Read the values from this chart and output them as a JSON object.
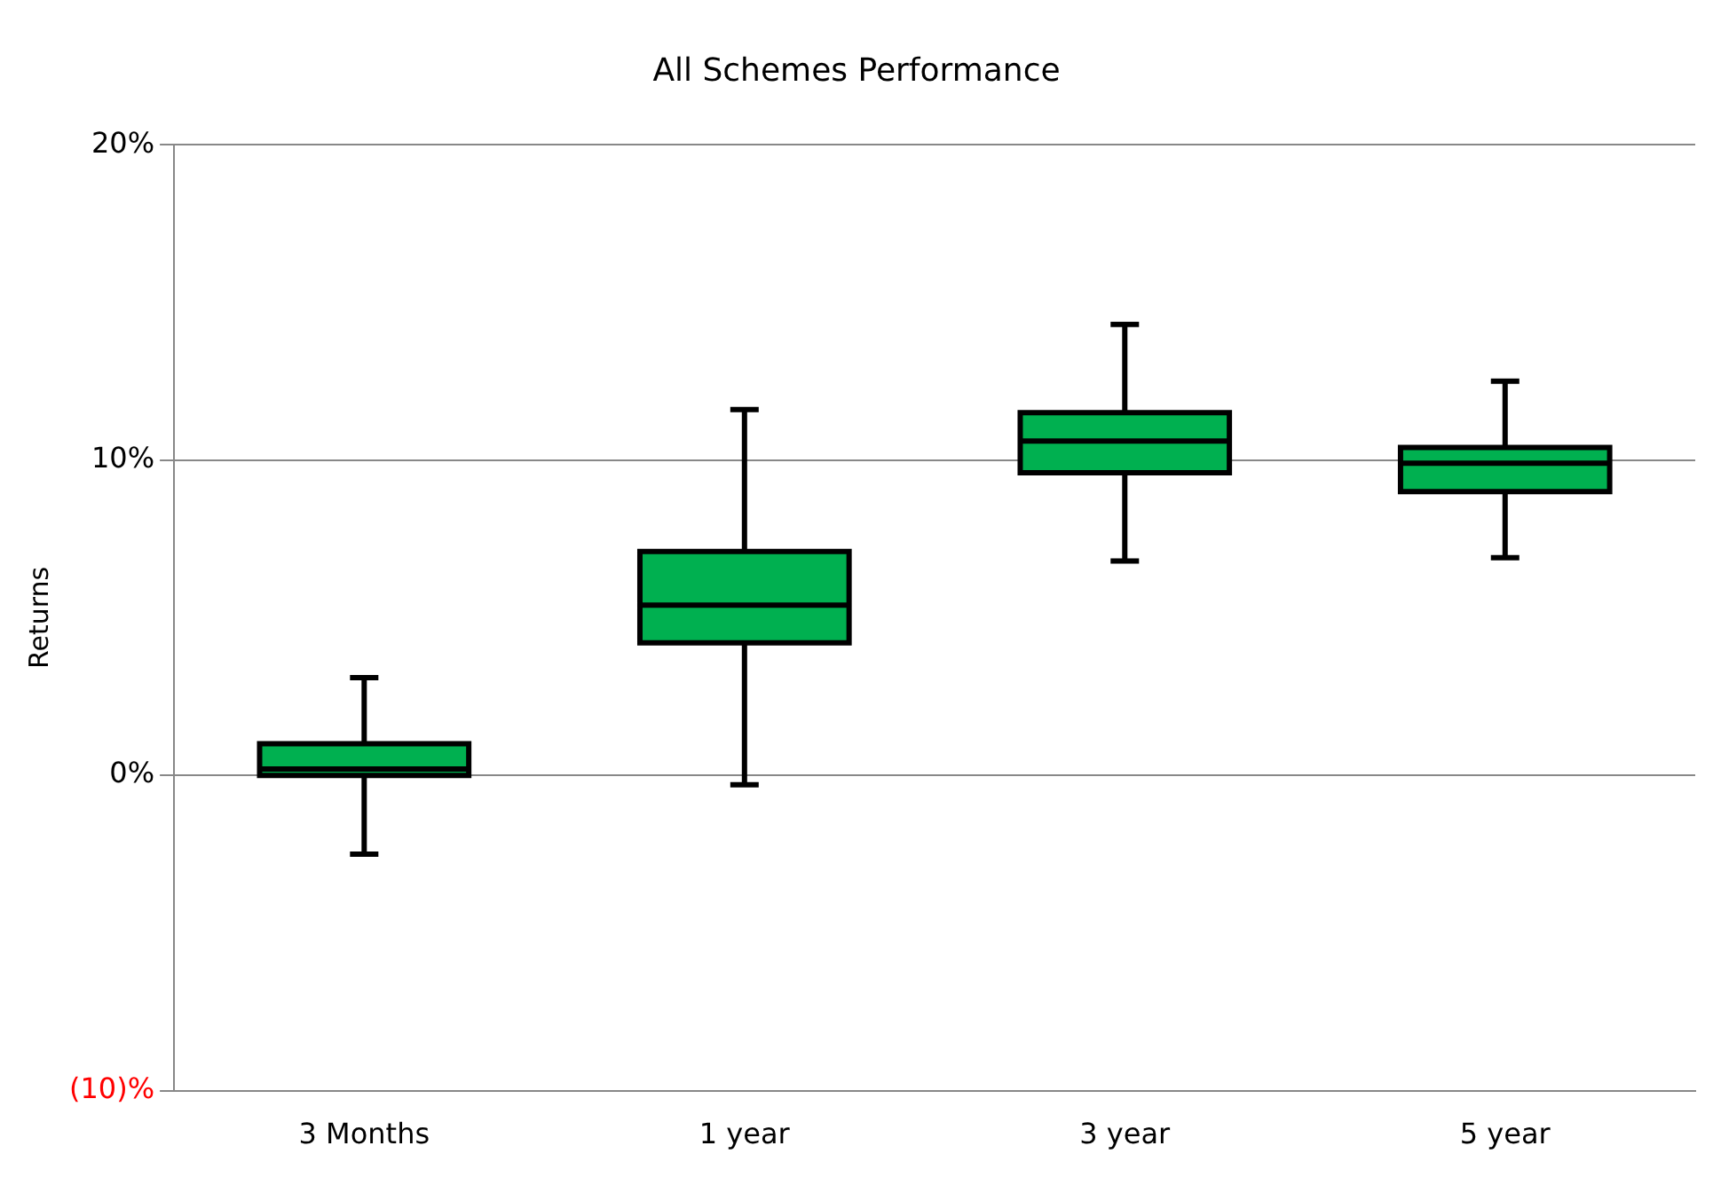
{
  "chart_data": {
    "type": "box",
    "title": "All Schemes Performance",
    "ylabel": "Returns",
    "categories": [
      "3 Months",
      "1 year",
      "3 year",
      "5 year"
    ],
    "color": "#00b050",
    "boxes": [
      {
        "low": -2.5,
        "q1": 0.0,
        "median": 0.2,
        "q3": 1.0,
        "high": 3.1
      },
      {
        "low": -0.3,
        "q1": 4.2,
        "median": 5.4,
        "q3": 7.1,
        "high": 11.6
      },
      {
        "low": 6.8,
        "q1": 9.6,
        "median": 10.6,
        "q3": 11.5,
        "high": 14.3
      },
      {
        "low": 6.9,
        "q1": 9.0,
        "median": 9.9,
        "q3": 10.4,
        "high": 12.5
      }
    ],
    "ylim": [
      -10,
      20
    ],
    "yticks": [
      {
        "value": -10,
        "label": "(10)%"
      },
      {
        "value": 0,
        "label": "0%"
      },
      {
        "value": 10,
        "label": "10%"
      },
      {
        "value": 20,
        "label": "20%"
      }
    ],
    "grid": "y",
    "legend": false
  }
}
